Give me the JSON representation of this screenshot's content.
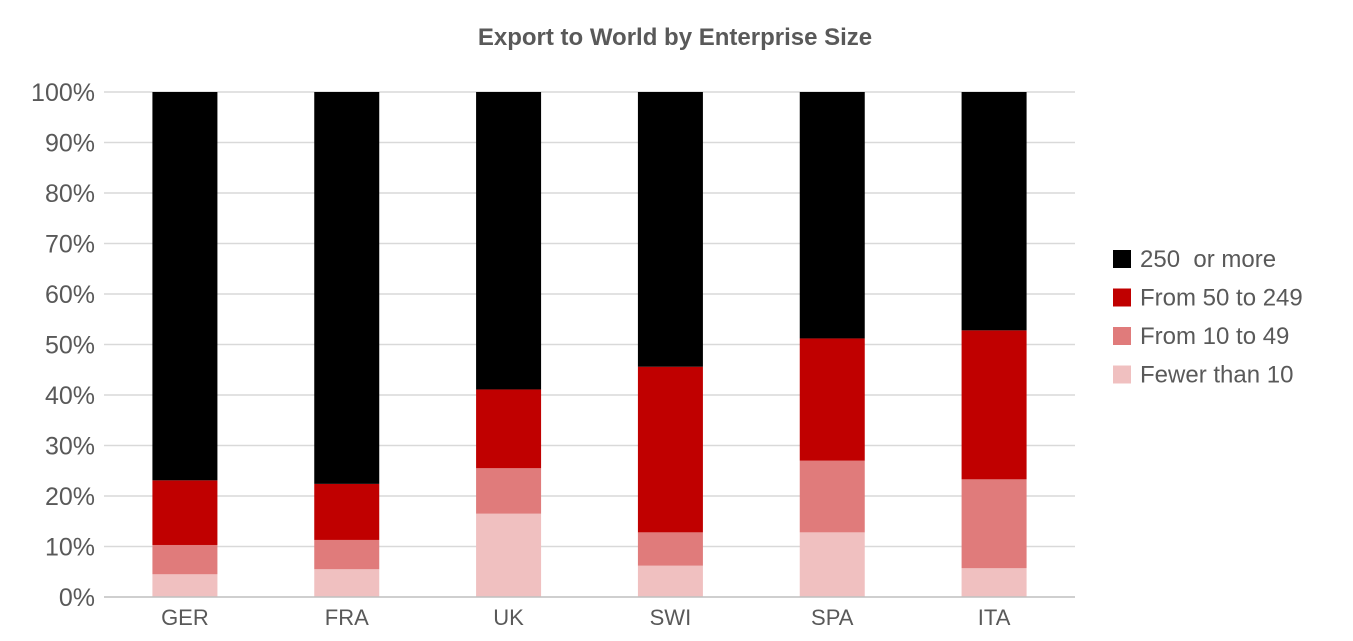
{
  "chart_data": {
    "type": "bar",
    "stacked": true,
    "title": "Export to World by Enterprise Size",
    "xlabel": "",
    "ylabel": "",
    "categories": [
      "GER",
      "FRA",
      "UK",
      "SWI",
      "SPA",
      "ITA"
    ],
    "ylim": [
      0,
      100
    ],
    "yticks": [
      "0%",
      "10%",
      "20%",
      "30%",
      "40%",
      "50%",
      "60%",
      "70%",
      "80%",
      "90%",
      "100%"
    ],
    "grid": true,
    "legend_position": "right",
    "series": [
      {
        "name": "Fewer than 10",
        "color": "#f0c0c0",
        "values": [
          4.5,
          5.5,
          16.5,
          6.2,
          12.8,
          5.7
        ]
      },
      {
        "name": "From 10 to 49",
        "color": "#e07b7b",
        "values": [
          5.8,
          5.8,
          9.0,
          6.6,
          14.2,
          17.6
        ]
      },
      {
        "name": "From 50 to 249",
        "color": "#c00000",
        "values": [
          12.8,
          11.1,
          15.6,
          32.8,
          24.2,
          29.5
        ]
      },
      {
        "name": "250  or more",
        "color": "#000000",
        "values": [
          76.9,
          77.6,
          58.9,
          54.4,
          48.8,
          47.2
        ]
      }
    ],
    "legend_order": [
      "250  or more",
      "From 50 to 249",
      "From 10 to 49",
      "Fewer than 10"
    ]
  }
}
